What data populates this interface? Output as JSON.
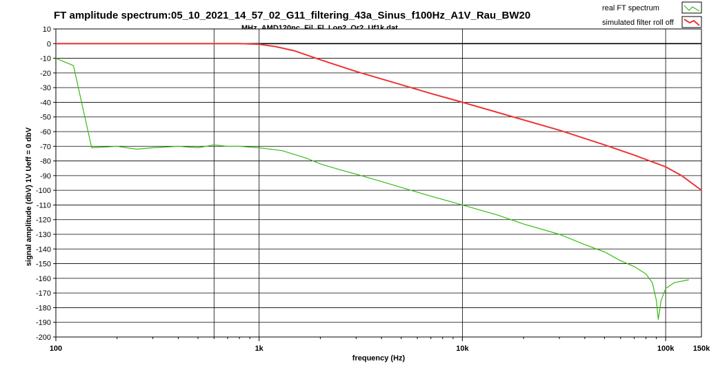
{
  "chart_data": {
    "type": "line",
    "title": "FT amplitude spectrum:05_10_2021_14_57_02_G11_filtering_43a_Sinus_f100Hz_A1V_Rau_BW20",
    "subtitle": "MHz_AMD120nc_Fil_Fl_Lop2_Or2_Uf1k.dat",
    "xlabel": "frequency (Hz)",
    "ylabel": "signal amplitude (dbV)   1V Ueff = 0 dbV",
    "x_scale": "log",
    "xlim": [
      100,
      150000
    ],
    "ylim": [
      -200,
      10
    ],
    "x_ticks": [
      {
        "value": 100,
        "label": "100"
      },
      {
        "value": 1000,
        "label": "1k"
      },
      {
        "value": 10000,
        "label": "10k"
      },
      {
        "value": 100000,
        "label": "100k"
      },
      {
        "value": 150000,
        "label": "150k"
      }
    ],
    "y_ticks": [
      "10",
      "0",
      "-10",
      "-20",
      "-30",
      "-40",
      "-50",
      "-60",
      "-70",
      "-80",
      "-90",
      "-100",
      "-110",
      "-120",
      "-130",
      "-140",
      "-150",
      "-160",
      "-170",
      "-180",
      "-190",
      "-200"
    ],
    "grid": true,
    "legend_position": "top-right",
    "series": [
      {
        "name": "real FT spectrum",
        "color": "#33bb11",
        "x": [
          100,
          122,
          150,
          200,
          250,
          300,
          400,
          500,
          600,
          700,
          800,
          1000,
          1300,
          1700,
          2000,
          2500,
          3000,
          4000,
          5000,
          7000,
          10000,
          15000,
          20000,
          30000,
          40000,
          50000,
          60000,
          70000,
          80000,
          86000,
          90000,
          92000,
          95000,
          100000,
          110000,
          130000
        ],
        "y": [
          -10,
          -15,
          -71,
          -70,
          -72,
          -71,
          -70,
          -71,
          -69,
          -70,
          -70,
          -71,
          -73,
          -78,
          -82,
          -86,
          -89,
          -94,
          -98,
          -104,
          -110,
          -117,
          -123,
          -130,
          -137,
          -142,
          -148,
          -152,
          -157,
          -163,
          -175,
          -188,
          -175,
          -167,
          -163,
          -161
        ]
      },
      {
        "name": "simulated filter roll off",
        "color": "#ee3333",
        "x": [
          100,
          500,
          800,
          1000,
          1200,
          1500,
          2000,
          3000,
          5000,
          7000,
          10000,
          20000,
          30000,
          50000,
          70000,
          100000,
          120000,
          150000
        ],
        "y": [
          0,
          0,
          0,
          -0.5,
          -2,
          -5,
          -11,
          -19,
          -28,
          -34,
          -40,
          -52,
          -59,
          -69,
          -76,
          -84,
          -90,
          -100
        ]
      }
    ]
  }
}
